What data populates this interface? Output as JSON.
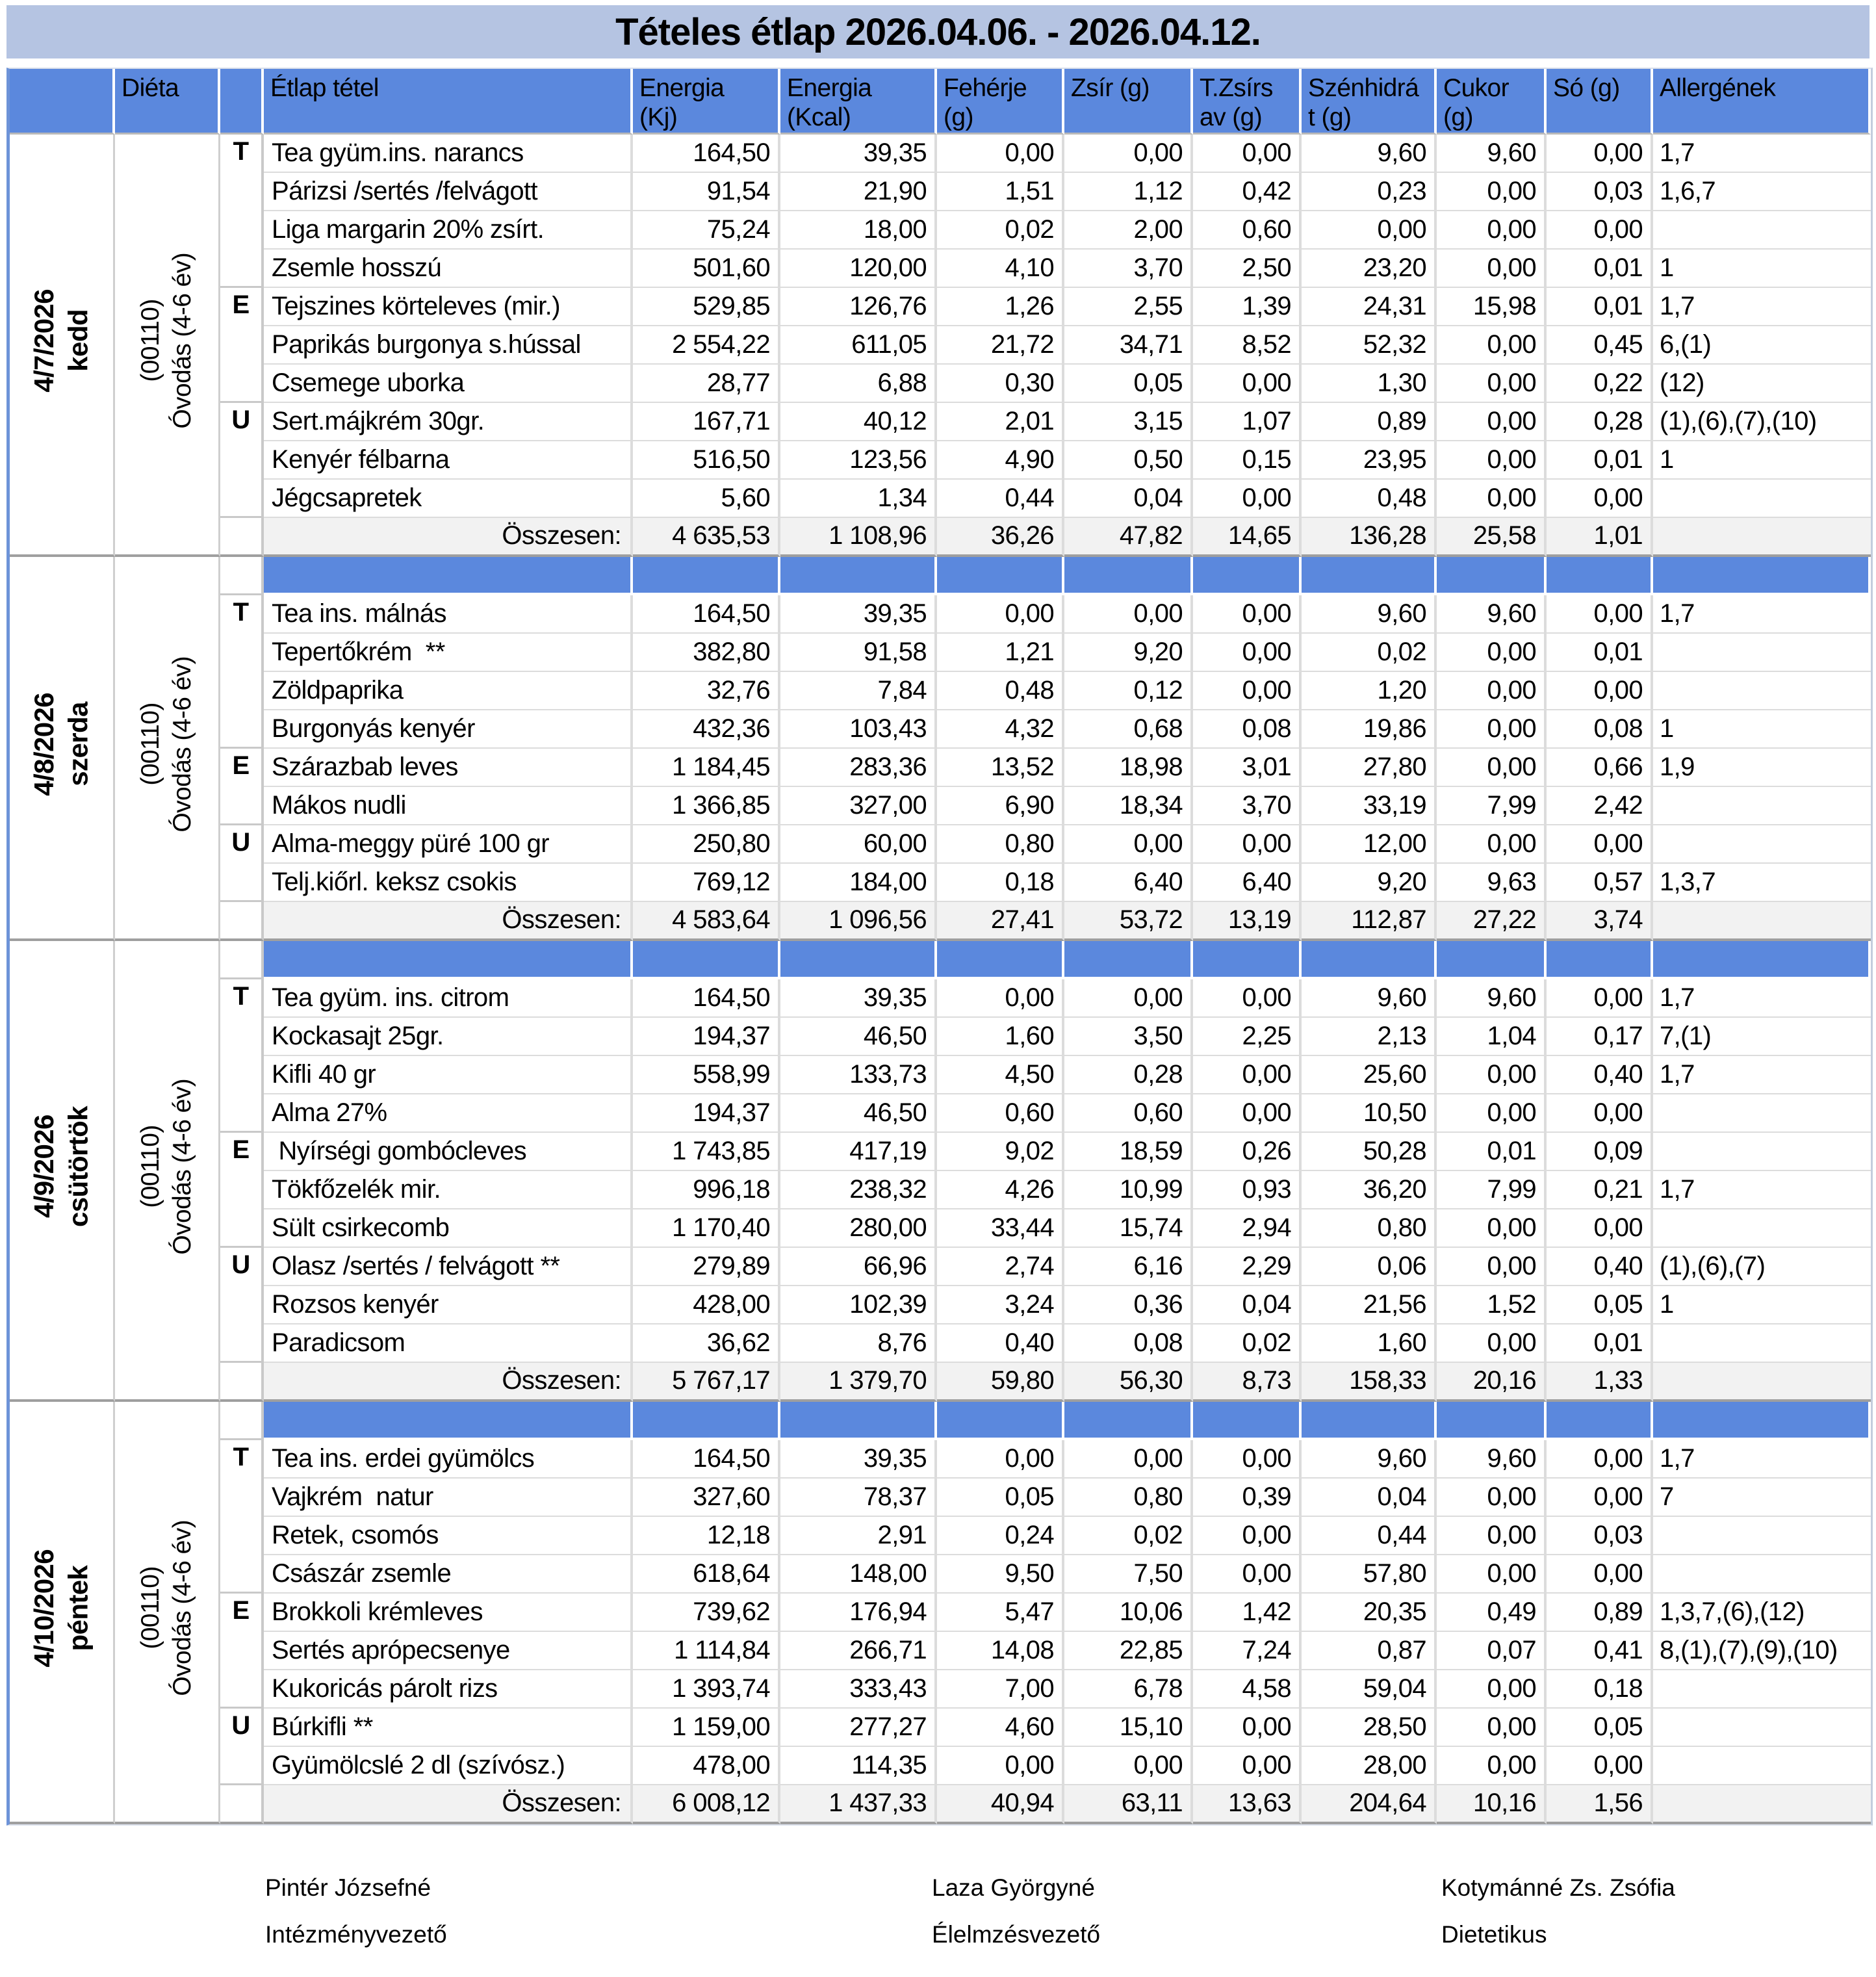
{
  "title": "Tételes étlap 2026.04.06. - 2026.04.12.",
  "header": {
    "dieta": "Diéta",
    "cols": [
      "Étlap tétel",
      "Energia\n(Kj)",
      "Energia\n(Kcal)",
      "Fehérje\n(g)",
      "Zsír (g)",
      "T.Zsírs\nav (g)",
      "Szénhidrá\nt (g)",
      "Cukor\n(g)",
      "Só (g)",
      "Allergének"
    ]
  },
  "colors": {
    "header_blue": "#5b88dd",
    "title_band": "#b5c4e2",
    "total_row_bg": "#f2f2f2"
  },
  "days": [
    {
      "date": "4/7/2026",
      "weekday": "kedd",
      "diet_code": "(00110)",
      "diet_group": "Óvodás (4-6 év)",
      "separator": false,
      "meals": [
        {
          "code": "T",
          "items": [
            {
              "name": "Tea gyüm.ins. narancs",
              "values": [
                "164,50",
                "39,35",
                "0,00",
                "0,00",
                "0,00",
                "9,60",
                "9,60",
                "0,00"
              ],
              "allergens": "1,7"
            },
            {
              "name": "Párizsi /sertés /felvágott",
              "values": [
                "91,54",
                "21,90",
                "1,51",
                "1,12",
                "0,42",
                "0,23",
                "0,00",
                "0,03"
              ],
              "allergens": "1,6,7"
            },
            {
              "name": "Liga margarin 20% zsírt.",
              "values": [
                "75,24",
                "18,00",
                "0,02",
                "2,00",
                "0,60",
                "0,00",
                "0,00",
                "0,00"
              ],
              "allergens": ""
            },
            {
              "name": "Zsemle hosszú",
              "values": [
                "501,60",
                "120,00",
                "4,10",
                "3,70",
                "2,50",
                "23,20",
                "0,00",
                "0,01"
              ],
              "allergens": "1"
            }
          ]
        },
        {
          "code": "E",
          "items": [
            {
              "name": "Tejszines körteleves (mir.)",
              "values": [
                "529,85",
                "126,76",
                "1,26",
                "2,55",
                "1,39",
                "24,31",
                "15,98",
                "0,01"
              ],
              "allergens": "1,7"
            },
            {
              "name": "Paprikás burgonya s.hússal",
              "values": [
                "2 554,22",
                "611,05",
                "21,72",
                "34,71",
                "8,52",
                "52,32",
                "0,00",
                "0,45"
              ],
              "allergens": "6,(1)"
            },
            {
              "name": "Csemege uborka",
              "values": [
                "28,77",
                "6,88",
                "0,30",
                "0,05",
                "0,00",
                "1,30",
                "0,00",
                "0,22"
              ],
              "allergens": "(12)"
            }
          ]
        },
        {
          "code": "U",
          "items": [
            {
              "name": "Sert.májkrém 30gr.",
              "values": [
                "167,71",
                "40,12",
                "2,01",
                "3,15",
                "1,07",
                "0,89",
                "0,00",
                "0,28"
              ],
              "allergens": "(1),(6),(7),(10)"
            },
            {
              "name": "Kenyér félbarna",
              "values": [
                "516,50",
                "123,56",
                "4,90",
                "0,50",
                "0,15",
                "23,95",
                "0,00",
                "0,01"
              ],
              "allergens": "1"
            },
            {
              "name": "Jégcsapretek",
              "values": [
                "5,60",
                "1,34",
                "0,44",
                "0,04",
                "0,00",
                "0,48",
                "0,00",
                "0,00"
              ],
              "allergens": ""
            }
          ]
        }
      ],
      "total": {
        "label": "Összesen:",
        "values": [
          "4 635,53",
          "1 108,96",
          "36,26",
          "47,82",
          "14,65",
          "136,28",
          "25,58",
          "1,01"
        ],
        "allergens": ""
      }
    },
    {
      "date": "4/8/2026",
      "weekday": "szerda",
      "diet_code": "(00110)",
      "diet_group": "Óvodás (4-6 év)",
      "separator": true,
      "meals": [
        {
          "code": "T",
          "items": [
            {
              "name": "Tea ins. málnás",
              "values": [
                "164,50",
                "39,35",
                "0,00",
                "0,00",
                "0,00",
                "9,60",
                "9,60",
                "0,00"
              ],
              "allergens": "1,7"
            },
            {
              "name": "Tepertőkrém  **",
              "values": [
                "382,80",
                "91,58",
                "1,21",
                "9,20",
                "0,00",
                "0,02",
                "0,00",
                "0,01"
              ],
              "allergens": ""
            },
            {
              "name": "Zöldpaprika",
              "values": [
                "32,76",
                "7,84",
                "0,48",
                "0,12",
                "0,00",
                "1,20",
                "0,00",
                "0,00"
              ],
              "allergens": ""
            },
            {
              "name": "Burgonyás kenyér",
              "values": [
                "432,36",
                "103,43",
                "4,32",
                "0,68",
                "0,08",
                "19,86",
                "0,00",
                "0,08"
              ],
              "allergens": "1"
            }
          ]
        },
        {
          "code": "E",
          "items": [
            {
              "name": "Szárazbab leves",
              "values": [
                "1 184,45",
                "283,36",
                "13,52",
                "18,98",
                "3,01",
                "27,80",
                "0,00",
                "0,66"
              ],
              "allergens": "1,9"
            },
            {
              "name": "Mákos nudli",
              "values": [
                "1 366,85",
                "327,00",
                "6,90",
                "18,34",
                "3,70",
                "33,19",
                "7,99",
                "2,42"
              ],
              "allergens": ""
            }
          ]
        },
        {
          "code": "U",
          "items": [
            {
              "name": "Alma-meggy püré 100 gr",
              "values": [
                "250,80",
                "60,00",
                "0,80",
                "0,00",
                "0,00",
                "12,00",
                "0,00",
                "0,00"
              ],
              "allergens": ""
            },
            {
              "name": "Telj.kiőrl. keksz csokis",
              "values": [
                "769,12",
                "184,00",
                "0,18",
                "6,40",
                "6,40",
                "9,20",
                "9,63",
                "0,57"
              ],
              "allergens": "1,3,7"
            }
          ]
        }
      ],
      "total": {
        "label": "Összesen:",
        "values": [
          "4 583,64",
          "1 096,56",
          "27,41",
          "53,72",
          "13,19",
          "112,87",
          "27,22",
          "3,74"
        ],
        "allergens": ""
      }
    },
    {
      "date": "4/9/2026",
      "weekday": "csütörtök",
      "diet_code": "(00110)",
      "diet_group": "Óvodás (4-6 év)",
      "separator": true,
      "meals": [
        {
          "code": "T",
          "items": [
            {
              "name": "Tea gyüm. ins. citrom",
              "values": [
                "164,50",
                "39,35",
                "0,00",
                "0,00",
                "0,00",
                "9,60",
                "9,60",
                "0,00"
              ],
              "allergens": "1,7"
            },
            {
              "name": "Kockasajt 25gr.",
              "values": [
                "194,37",
                "46,50",
                "1,60",
                "3,50",
                "2,25",
                "2,13",
                "1,04",
                "0,17"
              ],
              "allergens": "7,(1)"
            },
            {
              "name": "Kifli 40 gr",
              "values": [
                "558,99",
                "133,73",
                "4,50",
                "0,28",
                "0,00",
                "25,60",
                "0,00",
                "0,40"
              ],
              "allergens": "1,7"
            },
            {
              "name": "Alma 27%",
              "values": [
                "194,37",
                "46,50",
                "0,60",
                "0,60",
                "0,00",
                "10,50",
                "0,00",
                "0,00"
              ],
              "allergens": ""
            }
          ]
        },
        {
          "code": "E",
          "items": [
            {
              "name": " Nyírségi gombócleves",
              "values": [
                "1 743,85",
                "417,19",
                "9,02",
                "18,59",
                "0,26",
                "50,28",
                "0,01",
                "0,09"
              ],
              "allergens": ""
            },
            {
              "name": "Tökfőzelék mir.",
              "values": [
                "996,18",
                "238,32",
                "4,26",
                "10,99",
                "0,93",
                "36,20",
                "7,99",
                "0,21"
              ],
              "allergens": "1,7"
            },
            {
              "name": "Sült csirkecomb",
              "values": [
                "1 170,40",
                "280,00",
                "33,44",
                "15,74",
                "2,94",
                "0,80",
                "0,00",
                "0,00"
              ],
              "allergens": ""
            }
          ]
        },
        {
          "code": "U",
          "items": [
            {
              "name": "Olasz /sertés / felvágott **",
              "values": [
                "279,89",
                "66,96",
                "2,74",
                "6,16",
                "2,29",
                "0,06",
                "0,00",
                "0,40"
              ],
              "allergens": "(1),(6),(7)"
            },
            {
              "name": "Rozsos kenyér",
              "values": [
                "428,00",
                "102,39",
                "3,24",
                "0,36",
                "0,04",
                "21,56",
                "1,52",
                "0,05"
              ],
              "allergens": "1"
            },
            {
              "name": "Paradicsom",
              "values": [
                "36,62",
                "8,76",
                "0,40",
                "0,08",
                "0,02",
                "1,60",
                "0,00",
                "0,01"
              ],
              "allergens": ""
            }
          ]
        }
      ],
      "total": {
        "label": "Összesen:",
        "values": [
          "5 767,17",
          "1 379,70",
          "59,80",
          "56,30",
          "8,73",
          "158,33",
          "20,16",
          "1,33"
        ],
        "allergens": ""
      }
    },
    {
      "date": "4/10/2026",
      "weekday": "péntek",
      "diet_code": "(00110)",
      "diet_group": "Óvodás (4-6 év)",
      "separator": true,
      "meals": [
        {
          "code": "T",
          "items": [
            {
              "name": "Tea ins. erdei gyümölcs",
              "values": [
                "164,50",
                "39,35",
                "0,00",
                "0,00",
                "0,00",
                "9,60",
                "9,60",
                "0,00"
              ],
              "allergens": "1,7"
            },
            {
              "name": "Vajkrém  natur",
              "values": [
                "327,60",
                "78,37",
                "0,05",
                "0,80",
                "0,39",
                "0,04",
                "0,00",
                "0,00"
              ],
              "allergens": "7"
            },
            {
              "name": "Retek, csomós",
              "values": [
                "12,18",
                "2,91",
                "0,24",
                "0,02",
                "0,00",
                "0,44",
                "0,00",
                "0,03"
              ],
              "allergens": ""
            },
            {
              "name": "Császár zsemle",
              "values": [
                "618,64",
                "148,00",
                "9,50",
                "7,50",
                "0,00",
                "57,80",
                "0,00",
                "0,00"
              ],
              "allergens": ""
            }
          ]
        },
        {
          "code": "E",
          "items": [
            {
              "name": "Brokkoli krémleves",
              "values": [
                "739,62",
                "176,94",
                "5,47",
                "10,06",
                "1,42",
                "20,35",
                "0,49",
                "0,89"
              ],
              "allergens": "1,3,7,(6),(12)"
            },
            {
              "name": "Sertés aprópecsenye",
              "values": [
                "1 114,84",
                "266,71",
                "14,08",
                "22,85",
                "7,24",
                "0,87",
                "0,07",
                "0,41"
              ],
              "allergens": "8,(1),(7),(9),(10)"
            },
            {
              "name": "Kukoricás párolt rizs",
              "values": [
                "1 393,74",
                "333,43",
                "7,00",
                "6,78",
                "4,58",
                "59,04",
                "0,00",
                "0,18"
              ],
              "allergens": ""
            }
          ]
        },
        {
          "code": "U",
          "items": [
            {
              "name": "Búrkifli **",
              "values": [
                "1 159,00",
                "277,27",
                "4,60",
                "15,10",
                "0,00",
                "28,50",
                "0,00",
                "0,05"
              ],
              "allergens": ""
            },
            {
              "name": "Gyümölcslé 2 dl (szívósz.)",
              "values": [
                "478,00",
                "114,35",
                "0,00",
                "0,00",
                "0,00",
                "28,00",
                "0,00",
                "0,00"
              ],
              "allergens": ""
            }
          ]
        }
      ],
      "total": {
        "label": "Összesen:",
        "values": [
          "6 008,12",
          "1 437,33",
          "40,94",
          "63,11",
          "13,63",
          "204,64",
          "10,16",
          "1,56"
        ],
        "allergens": ""
      }
    }
  ],
  "footer": {
    "signers": [
      {
        "name": "Pintér Józsefné",
        "role": "Intézményvezető"
      },
      {
        "name": "Laza Györgyné",
        "role": "Élelmzésvezető"
      },
      {
        "name": "Kotymánné Zs. Zsófia",
        "role": "Dietetikus"
      }
    ]
  }
}
